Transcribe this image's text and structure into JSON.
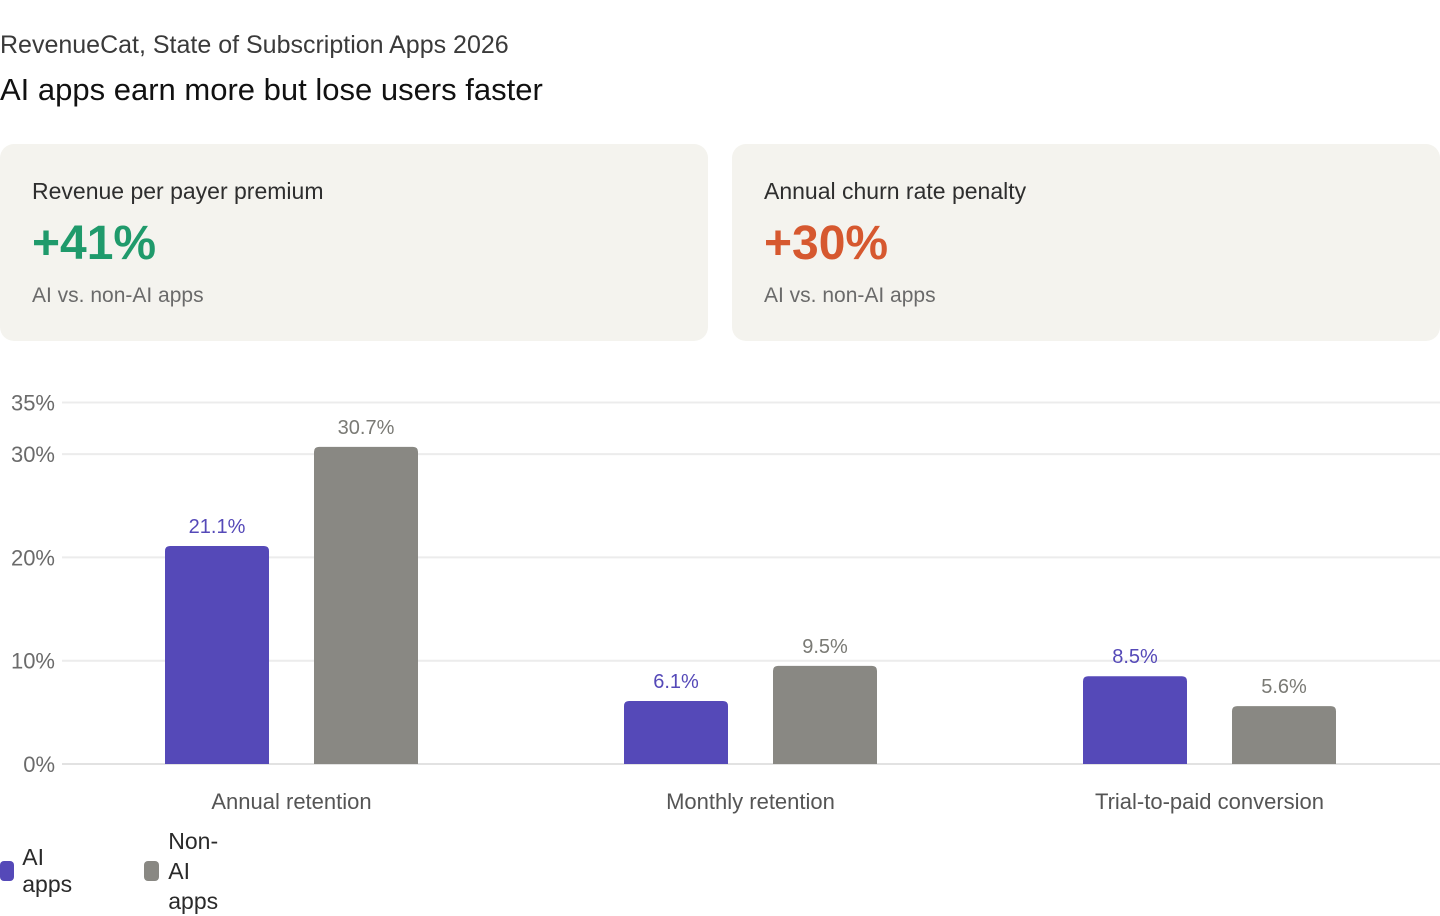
{
  "header": {
    "source": "RevenueCat, State of Subscription Apps 2026",
    "title": "AI apps earn more but lose users faster"
  },
  "cards": [
    {
      "label": "Revenue per payer premium",
      "value": "+41%",
      "sub": "AI vs. non-AI apps",
      "color": "#1f9a6b"
    },
    {
      "label": "Annual churn rate penalty",
      "value": "+30%",
      "sub": "AI vs. non-AI apps",
      "color": "#d6582f"
    }
  ],
  "chart_data": {
    "type": "bar",
    "categories": [
      "Annual retention",
      "Monthly retention",
      "Trial-to-paid conversion"
    ],
    "series": [
      {
        "name": "AI apps",
        "values": [
          21.1,
          6.1,
          8.5
        ],
        "labels": [
          "21.1%",
          "6.1%",
          "8.5%"
        ],
        "color": "#5549b8",
        "label_color": "#5549b8"
      },
      {
        "name": "Non-AI apps",
        "values": [
          30.7,
          9.5,
          5.6
        ],
        "labels": [
          "30.7%",
          "9.5%",
          "5.6%"
        ],
        "color": "#898883",
        "label_color": "#7a7a75"
      }
    ],
    "y_ticks": [
      0,
      10,
      20,
      30,
      35
    ],
    "y_tick_labels": [
      "0%",
      "10%",
      "20%",
      "30%",
      "35%"
    ],
    "ylim": [
      0,
      35
    ],
    "grid": true,
    "legend_position": "bottom-left"
  },
  "legend": {
    "ai_label": "AI apps",
    "nonai_line1": "Non-AI",
    "nonai_line2": "apps"
  }
}
